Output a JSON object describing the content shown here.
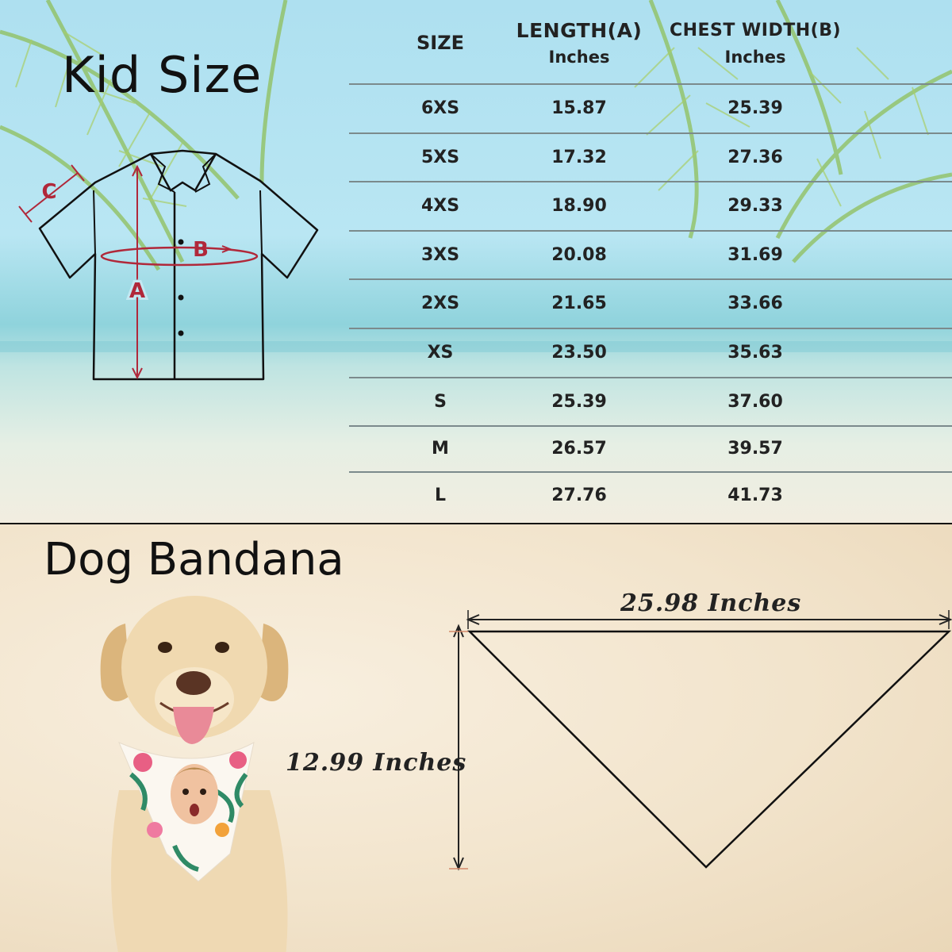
{
  "kid_size": {
    "title": "Kid Size",
    "diagram_labels": {
      "a": "A",
      "b": "B",
      "c": "C"
    },
    "headers": {
      "size": "SIZE",
      "length": "LENGTH(A)",
      "length_unit": "Inches",
      "chest": "CHEST WIDTH(B)",
      "chest_unit": "Inches"
    },
    "rows": [
      {
        "size": "6XS",
        "length": "15.87",
        "chest": "25.39"
      },
      {
        "size": "5XS",
        "length": "17.32",
        "chest": "27.36"
      },
      {
        "size": "4XS",
        "length": "18.90",
        "chest": "29.33"
      },
      {
        "size": "3XS",
        "length": "20.08",
        "chest": "31.69"
      },
      {
        "size": "2XS",
        "length": "21.65",
        "chest": "33.66"
      },
      {
        "size": "XS",
        "length": "23.50",
        "chest": "35.63"
      },
      {
        "size": "S",
        "length": "25.39",
        "chest": "37.60"
      },
      {
        "size": "M",
        "length": "26.57",
        "chest": "39.57"
      },
      {
        "size": "L",
        "length": "27.76",
        "chest": "41.73"
      }
    ]
  },
  "dog_bandana": {
    "title": "Dog Bandana",
    "width_label": "25.98 Inches",
    "height_label": "12.99 Inches"
  },
  "colors": {
    "measure_red": "#b0283a",
    "text": "#222222"
  },
  "icons": {
    "shirt": "hawaiian-shirt-outline",
    "dog": "dog-wearing-floral-bandana",
    "bandana": "triangle-outline"
  }
}
